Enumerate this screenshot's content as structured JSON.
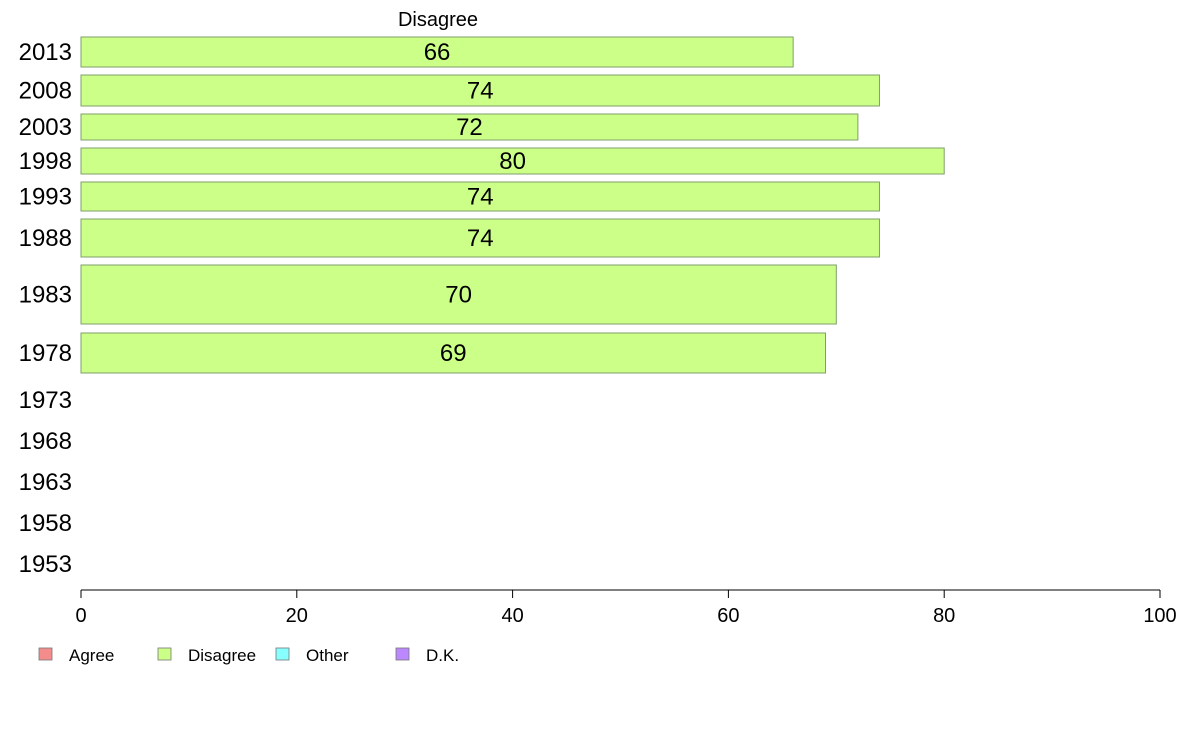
{
  "chart_data": {
    "type": "bar",
    "orientation": "horizontal",
    "panel_title": "Disagree",
    "categories": [
      "2013",
      "2008",
      "2003",
      "1998",
      "1993",
      "1988",
      "1983",
      "1978",
      "1973",
      "1968",
      "1963",
      "1958",
      "1953"
    ],
    "series": [
      {
        "name": "Disagree",
        "values": [
          66,
          74,
          72,
          80,
          74,
          74,
          70,
          69,
          null,
          null,
          null,
          null,
          null
        ]
      }
    ],
    "xlim": [
      0,
      100
    ],
    "x_ticks": [
      0,
      20,
      40,
      60,
      80,
      100
    ],
    "legend": {
      "placement": "bottom-left",
      "items": [
        {
          "label": "Agree",
          "color": "#f48c8c"
        },
        {
          "label": "Disagree",
          "color": "#ccff88"
        },
        {
          "label": "Other",
          "color": "#88ffff"
        },
        {
          "label": "D.K.",
          "color": "#bb88ff"
        }
      ]
    },
    "bar_color": "#ccff88",
    "bar_border": "#7f9f6a"
  }
}
